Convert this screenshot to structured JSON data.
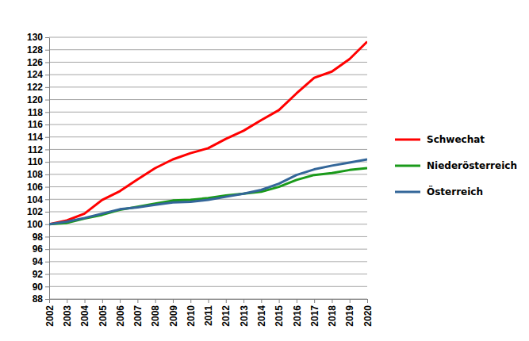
{
  "chart_data": {
    "type": "line",
    "x": [
      2002,
      2003,
      2004,
      2005,
      2006,
      2007,
      2008,
      2009,
      2010,
      2011,
      2012,
      2013,
      2014,
      2015,
      2016,
      2017,
      2018,
      2019,
      2020
    ],
    "series": [
      {
        "name": "Schwechat",
        "color": "#ff0000",
        "values": [
          100,
          100.6,
          101.7,
          103.9,
          105.3,
          107.2,
          109.0,
          110.4,
          111.4,
          112.2,
          113.7,
          115.0,
          116.7,
          118.3,
          121.0,
          123.5,
          124.5,
          126.5,
          129.3
        ]
      },
      {
        "name": "Niederösterreich",
        "color": "#1a9a1a",
        "values": [
          100,
          100.2,
          100.9,
          101.5,
          102.3,
          102.8,
          103.3,
          103.8,
          103.9,
          104.2,
          104.6,
          104.9,
          105.2,
          106.0,
          107.1,
          107.9,
          108.2,
          108.7,
          109.0
        ]
      },
      {
        "name": "Österreich",
        "color": "#336699",
        "values": [
          100,
          100.4,
          101.0,
          101.7,
          102.4,
          102.7,
          103.1,
          103.5,
          103.6,
          103.9,
          104.4,
          104.9,
          105.5,
          106.5,
          107.9,
          108.8,
          109.4,
          109.9,
          110.4
        ]
      }
    ],
    "xlim": [
      2002,
      2020
    ],
    "xticks": [
      2002,
      2003,
      2004,
      2005,
      2006,
      2007,
      2008,
      2009,
      2010,
      2011,
      2012,
      2013,
      2014,
      2015,
      2016,
      2017,
      2018,
      2019,
      2020
    ],
    "ylim": [
      88,
      130
    ],
    "yticks": [
      88,
      90,
      92,
      94,
      96,
      98,
      100,
      102,
      104,
      106,
      108,
      110,
      112,
      114,
      116,
      118,
      120,
      122,
      124,
      126,
      128,
      130
    ],
    "grid": true,
    "legend": "right"
  }
}
